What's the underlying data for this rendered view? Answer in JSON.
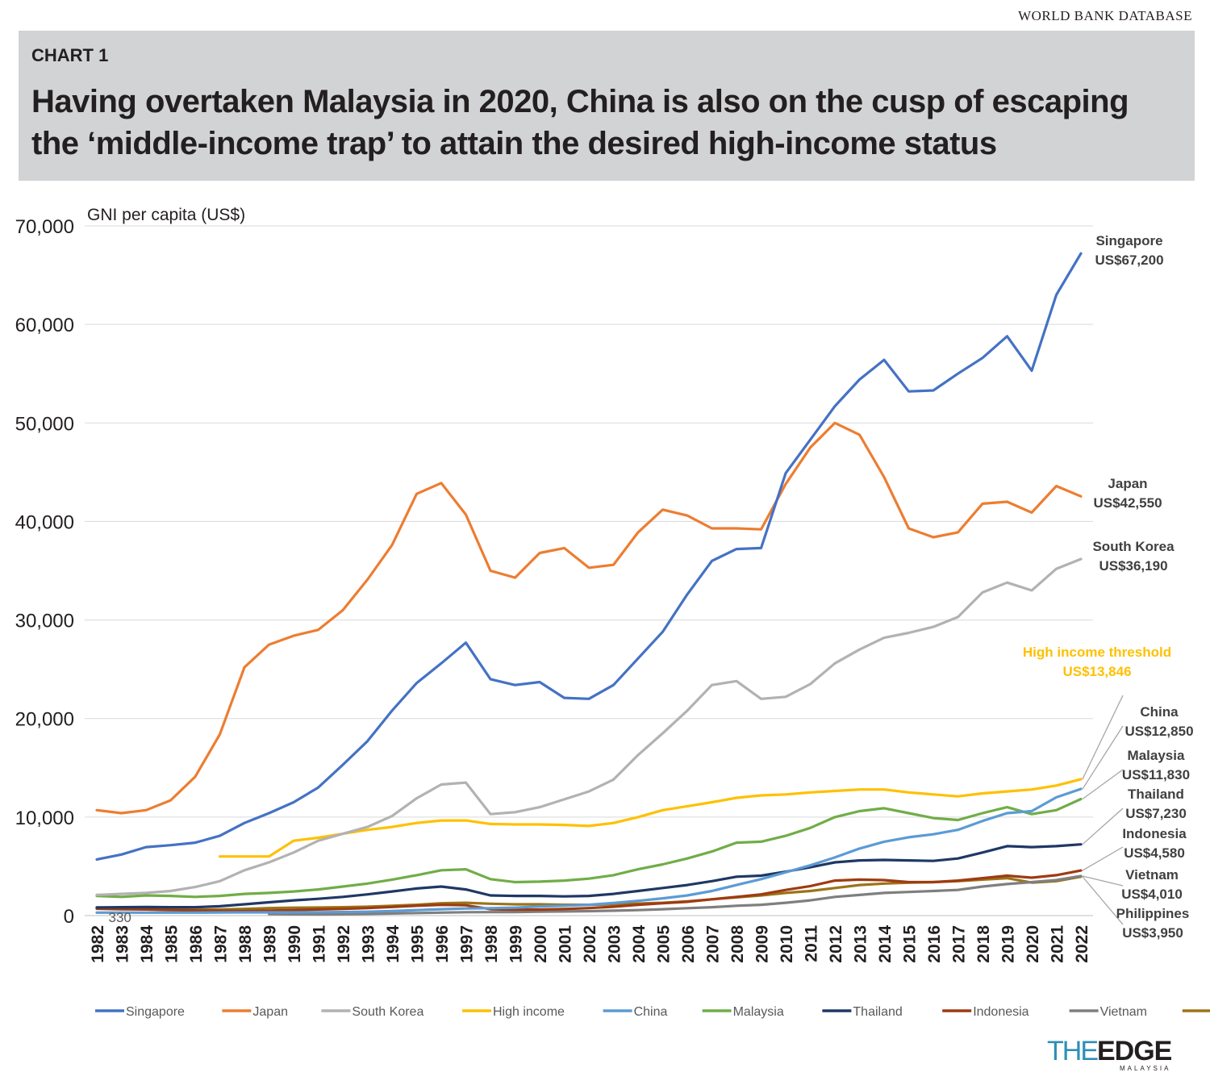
{
  "source": "WORLD BANK DATABASE",
  "header": {
    "label": "CHART 1",
    "title": "Having overtaken Malaysia in 2020, China is also on the cusp of escaping the ‘middle-income trap’ to attain the desired high-income status"
  },
  "logo": {
    "part1": "THE",
    "part2": "EDGE",
    "sub": "MALAYSIA"
  },
  "chart_data": {
    "type": "line",
    "ylabel": "GNI per capita (US$)",
    "ylim": [
      0,
      70000
    ],
    "yticks": [
      0,
      10000,
      20000,
      30000,
      40000,
      50000,
      60000,
      70000
    ],
    "ytick_labels": [
      "0",
      "10,000",
      "20,000",
      "30,000",
      "40,000",
      "50,000",
      "60,000",
      "70,000"
    ],
    "grid": true,
    "legend_position": "bottom",
    "x": [
      1982,
      1983,
      1984,
      1985,
      1986,
      1987,
      1988,
      1989,
      1990,
      1991,
      1992,
      1993,
      1994,
      1995,
      1996,
      1997,
      1998,
      1999,
      2000,
      2001,
      2002,
      2003,
      2004,
      2005,
      2006,
      2007,
      2008,
      2009,
      2010,
      2011,
      2012,
      2013,
      2014,
      2015,
      2016,
      2017,
      2018,
      2019,
      2020,
      2021,
      2022
    ],
    "series": [
      {
        "name": "Singapore",
        "color": "#4472c4",
        "values": [
          5700,
          6200,
          6950,
          7150,
          7400,
          8100,
          9400,
          10400,
          11500,
          13000,
          15300,
          17700,
          20800,
          23600,
          25600,
          27700,
          24000,
          23400,
          23700,
          22100,
          22000,
          23400,
          26100,
          28800,
          32600,
          36000,
          37200,
          37300,
          44900,
          48300,
          51700,
          54400,
          56400,
          53200,
          53300,
          55000,
          56600,
          58800,
          55300,
          63000,
          67200
        ]
      },
      {
        "name": "Japan",
        "color": "#ed7d31",
        "values": [
          10700,
          10400,
          10700,
          11700,
          14100,
          18400,
          25200,
          27500,
          28400,
          29000,
          31000,
          34100,
          37600,
          42800,
          43900,
          40700,
          35000,
          34300,
          36800,
          37300,
          35300,
          35600,
          38900,
          41200,
          40600,
          39300,
          39300,
          39200,
          43800,
          47500,
          50000,
          48800,
          44500,
          39300,
          38400,
          38900,
          41800,
          42000,
          40900,
          43600,
          42550
        ]
      },
      {
        "name": "South Korea",
        "color": "#b2b2b2",
        "values": [
          2100,
          2200,
          2300,
          2500,
          2900,
          3500,
          4600,
          5400,
          6400,
          7600,
          8300,
          9000,
          10100,
          11900,
          13300,
          13500,
          10300,
          10500,
          11000,
          11800,
          12600,
          13800,
          16300,
          18500,
          20800,
          23400,
          23800,
          22000,
          22200,
          23500,
          25600,
          27000,
          28200,
          28700,
          29300,
          30300,
          32800,
          33800,
          33000,
          35200,
          36190
        ]
      },
      {
        "name": "High income",
        "color": "#ffc000",
        "values": [
          null,
          null,
          null,
          null,
          null,
          6000,
          6000,
          6000,
          7600,
          7900,
          8300,
          8700,
          9000,
          9400,
          9650,
          9650,
          9300,
          9250,
          9250,
          9200,
          9100,
          9400,
          10000,
          10700,
          11100,
          11500,
          11950,
          12200,
          12300,
          12500,
          12650,
          12800,
          12800,
          12500,
          12300,
          12100,
          12400,
          12600,
          12800,
          13200,
          13846
        ]
      },
      {
        "name": "China",
        "color": "#5b9bd5",
        "values": [
          300,
          300,
          300,
          300,
          300,
          320,
          330,
          330,
          330,
          340,
          360,
          390,
          470,
          560,
          650,
          720,
          750,
          800,
          930,
          1000,
          1100,
          1280,
          1500,
          1750,
          2050,
          2500,
          3100,
          3700,
          4400,
          5100,
          5900,
          6800,
          7500,
          7950,
          8250,
          8700,
          9600,
          10400,
          10600,
          12000,
          12850
        ]
      },
      {
        "name": "Malaysia",
        "color": "#70ad47",
        "values": [
          2000,
          1900,
          2050,
          2000,
          1900,
          2000,
          2200,
          2300,
          2450,
          2650,
          2950,
          3250,
          3650,
          4100,
          4600,
          4700,
          3700,
          3400,
          3450,
          3550,
          3750,
          4100,
          4700,
          5200,
          5800,
          6500,
          7400,
          7500,
          8100,
          8900,
          10000,
          10600,
          10900,
          10400,
          9900,
          9700,
          10400,
          11000,
          10300,
          10700,
          11830
        ]
      },
      {
        "name": "Thailand",
        "color": "#1f3864",
        "values": [
          830,
          850,
          870,
          850,
          850,
          950,
          1150,
          1350,
          1550,
          1700,
          1900,
          2150,
          2450,
          2750,
          2950,
          2650,
          2050,
          2000,
          2000,
          1950,
          2000,
          2200,
          2500,
          2800,
          3100,
          3500,
          3950,
          4050,
          4450,
          4900,
          5400,
          5600,
          5650,
          5600,
          5550,
          5800,
          6400,
          7050,
          6950,
          7050,
          7230
        ]
      },
      {
        "name": "Indonesia",
        "color": "#9e3b12",
        "values": [
          700,
          650,
          620,
          560,
          520,
          480,
          470,
          500,
          560,
          620,
          680,
          760,
          880,
          1000,
          1100,
          1050,
          650,
          600,
          610,
          660,
          760,
          900,
          1100,
          1250,
          1400,
          1650,
          1900,
          2150,
          2600,
          3000,
          3550,
          3650,
          3600,
          3400,
          3400,
          3550,
          3800,
          4050,
          3850,
          4100,
          4580
        ]
      },
      {
        "name": "Vietnam",
        "color": "#7f7f7f",
        "values": [
          null,
          null,
          null,
          null,
          null,
          null,
          null,
          160,
          130,
          120,
          140,
          170,
          210,
          260,
          300,
          340,
          350,
          360,
          390,
          420,
          450,
          500,
          560,
          650,
          750,
          850,
          1000,
          1100,
          1300,
          1550,
          1900,
          2100,
          2300,
          2400,
          2500,
          2600,
          2950,
          3200,
          3400,
          3600,
          4010
        ]
      },
      {
        "name": "Philippines",
        "color": "#9c7319",
        "values": [
          800,
          700,
          650,
          620,
          600,
          620,
          680,
          760,
          800,
          820,
          850,
          900,
          1000,
          1100,
          1250,
          1300,
          1200,
          1150,
          1150,
          1100,
          1100,
          1150,
          1220,
          1300,
          1450,
          1650,
          1850,
          2050,
          2300,
          2500,
          2800,
          3100,
          3250,
          3350,
          3400,
          3500,
          3650,
          3800,
          3350,
          3500,
          3950
        ]
      }
    ],
    "annotations": [
      {
        "series": "Singapore",
        "name": "Singapore",
        "value": "US$67,200",
        "color": "#404040"
      },
      {
        "series": "Japan",
        "name": "Japan",
        "value": "US$42,550",
        "color": "#404040"
      },
      {
        "series": "South Korea",
        "name": "South Korea",
        "value": "US$36,190",
        "color": "#404040"
      },
      {
        "series": "High income",
        "name": "High income threshold",
        "value": "US$13,846",
        "color": "#ffc000"
      },
      {
        "series": "China",
        "name": "China",
        "value": "US$12,850",
        "color": "#404040"
      },
      {
        "series": "Malaysia",
        "name": "Malaysia",
        "value": "US$11,830",
        "color": "#404040"
      },
      {
        "series": "Thailand",
        "name": "Thailand",
        "value": "US$7,230",
        "color": "#404040"
      },
      {
        "series": "Indonesia",
        "name": "Indonesia",
        "value": "US$4,580",
        "color": "#404040"
      },
      {
        "series": "Vietnam",
        "name": "Vietnam",
        "value": "US$4,010",
        "color": "#404040"
      },
      {
        "series": "Philippines",
        "name": "Philippines",
        "value": "US$3,950",
        "color": "#404040"
      }
    ],
    "point_label": {
      "text": "330",
      "x": 1983,
      "y": 330
    }
  }
}
